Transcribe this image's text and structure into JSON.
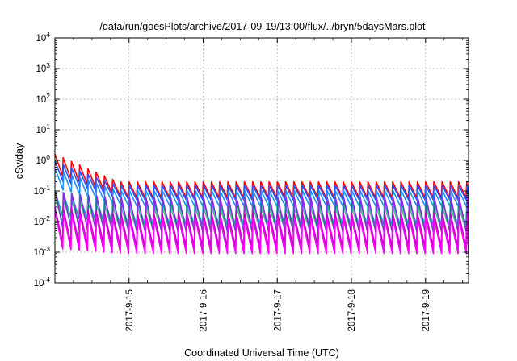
{
  "chart_data": {
    "type": "line",
    "title": "/data/run/goesPlots/archive/2017-09-19/13:00/flux/../bryn/5daysMars.plot",
    "xlabel": "Coordinated Universal Time (UTC)",
    "ylabel": "cSv/day",
    "y_scale": "log",
    "ylim": [
      0.0001,
      10000
    ],
    "xlim": [
      "2017-09-14 00:00",
      "2017-09-19 14:00"
    ],
    "y_ticks": [
      {
        "base": "10",
        "exp": "-4"
      },
      {
        "base": "10",
        "exp": "-3"
      },
      {
        "base": "10",
        "exp": "-2"
      },
      {
        "base": "10",
        "exp": "-1"
      },
      {
        "base": "10",
        "exp": "0"
      },
      {
        "base": "10",
        "exp": "1"
      },
      {
        "base": "10",
        "exp": "2"
      },
      {
        "base": "10",
        "exp": "3"
      },
      {
        "base": "10",
        "exp": "4"
      }
    ],
    "x_ticks": [
      {
        "label": "2017-9-15",
        "day": 1
      },
      {
        "label": "2017-9-16",
        "day": 2
      },
      {
        "label": "2017-9-17",
        "day": 3
      },
      {
        "label": "2017-9-18",
        "day": 4
      },
      {
        "label": "2017-9-19",
        "day": 5
      }
    ],
    "grid": true,
    "legend": "none",
    "series": [
      {
        "color": "#ff0000",
        "high": 0.2,
        "low": 0.06,
        "early_high": 1.6
      },
      {
        "color": "#3050ff",
        "high": 0.15,
        "low": 0.05,
        "early_high": 0.9
      },
      {
        "color": "#1e90ff",
        "high": 0.1,
        "low": 0.03,
        "early_high": 0.5
      },
      {
        "color": "#00b3a8",
        "high": 0.045,
        "low": 0.008,
        "early_high": 0.1
      },
      {
        "color": "#30d080",
        "high": 0.03,
        "low": 0.005,
        "early_high": 0.06
      },
      {
        "color": "#8a2be2",
        "high": 0.06,
        "low": 0.004,
        "early_high": 0.09
      },
      {
        "color": "#c000c0",
        "high": 0.02,
        "low": 0.0015,
        "early_high": 0.03
      },
      {
        "color": "#ff00ff",
        "high": 0.013,
        "low": 0.0009,
        "early_high": 0.02
      }
    ]
  }
}
